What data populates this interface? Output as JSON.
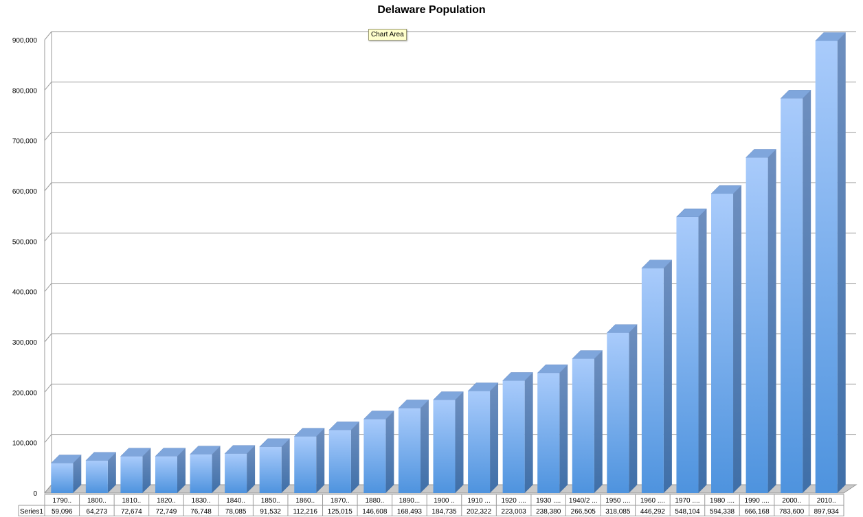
{
  "chart_data": {
    "type": "bar",
    "title": "Delaware Population",
    "xlabel": "",
    "ylabel": "",
    "ylim": [
      0,
      900000
    ],
    "yticks": [
      0,
      100000,
      200000,
      300000,
      400000,
      500000,
      600000,
      700000,
      800000,
      900000
    ],
    "ytick_labels": [
      "0",
      "100,000",
      "200,000",
      "300,000",
      "400,000",
      "500,000",
      "600,000",
      "700,000",
      "800,000",
      "900,000"
    ],
    "grid": true,
    "legend": "data-table",
    "categories": [
      "1790..",
      "1800..",
      "1810..",
      "1820..",
      "1830..",
      "1840..",
      "1850..",
      "1860..",
      "1870..",
      "1880..",
      "1890...",
      "1900 ..",
      "1910 ...",
      "1920 ....",
      "1930 ....",
      "1940/2 ...",
      "1950 ....",
      "1960 ....",
      "1970 ....",
      "1980 ....",
      "1990 ....",
      "2000..",
      "2010.."
    ],
    "series": [
      {
        "name": "Series1",
        "values": [
          59096,
          64273,
          72674,
          72749,
          76748,
          78085,
          91532,
          112216,
          125015,
          146608,
          168493,
          184735,
          202322,
          223003,
          238380,
          266505,
          318085,
          446292,
          548104,
          594338,
          666168,
          783600,
          897934
        ],
        "value_labels": [
          "59,096",
          "64,273",
          "72,674",
          "72,749",
          "76,748",
          "78,085",
          "91,532",
          "112,216",
          "125,015",
          "146,608",
          "168,493",
          "184,735",
          "202,322",
          "223,003",
          "238,380",
          "266,505",
          "318,085",
          "446,292",
          "548,104",
          "594,338",
          "666,168",
          "783,600",
          "897,934"
        ],
        "color": "#6fa6e8"
      }
    ]
  },
  "tooltip": {
    "text": "Chart Area"
  }
}
